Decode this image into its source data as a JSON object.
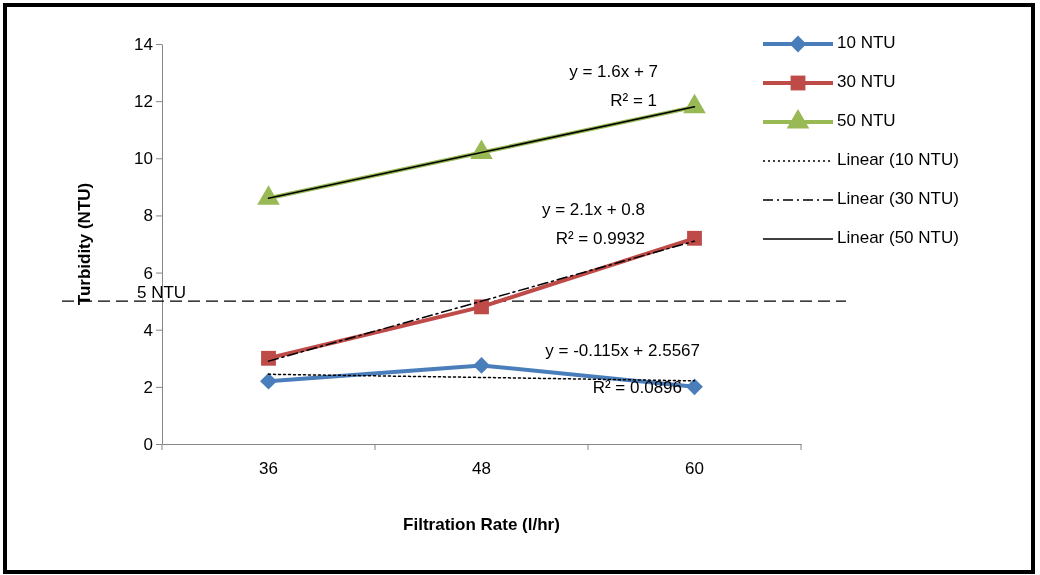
{
  "chart_data": {
    "type": "line",
    "xlabel": "Filtration Rate (l/hr)",
    "ylabel": "Turbidity (NTU)",
    "categories": [
      "36",
      "48",
      "60"
    ],
    "ylim": [
      0,
      14
    ],
    "yticks": [
      0,
      2,
      4,
      6,
      8,
      10,
      12,
      14
    ],
    "grid": false,
    "legend": "right",
    "series": [
      {
        "name": "10 NTU",
        "color": "#4a7ebb",
        "values": [
          2.2,
          2.75,
          2.0
        ],
        "marker": "diamond",
        "line_style": "solid"
      },
      {
        "name": "30 NTU",
        "color": "#be4b48",
        "values": [
          3.0,
          4.8,
          7.2
        ],
        "marker": "square",
        "line_style": "solid"
      },
      {
        "name": "50 NTU",
        "color": "#98b954",
        "values": [
          8.6,
          10.2,
          11.8
        ],
        "marker": "triangle",
        "line_style": "solid"
      },
      {
        "name": "Linear (10 NTU)",
        "color": "#000000",
        "values": [
          2.44,
          2.33,
          2.21
        ],
        "marker": "none",
        "line_style": "dotted"
      },
      {
        "name": "Linear (30 NTU)",
        "color": "#000000",
        "values": [
          2.9,
          5.0,
          7.1
        ],
        "marker": "none",
        "line_style": "dashed"
      },
      {
        "name": "Linear (50 NTU)",
        "color": "#000000",
        "values": [
          8.6,
          10.2,
          11.8
        ],
        "marker": "none",
        "line_style": "solid"
      }
    ],
    "ref_lines": [
      {
        "axis": "y",
        "value": 5,
        "label": "5 NTU",
        "color": "#000000",
        "line_style": "dashed"
      }
    ],
    "annotations": [
      "y = 1.6x + 7",
      "R² = 1",
      "y = 2.1x + 0.8",
      "R² = 0.9932",
      "y = -0.115x + 2.5567",
      "R² = 0.0896"
    ]
  }
}
